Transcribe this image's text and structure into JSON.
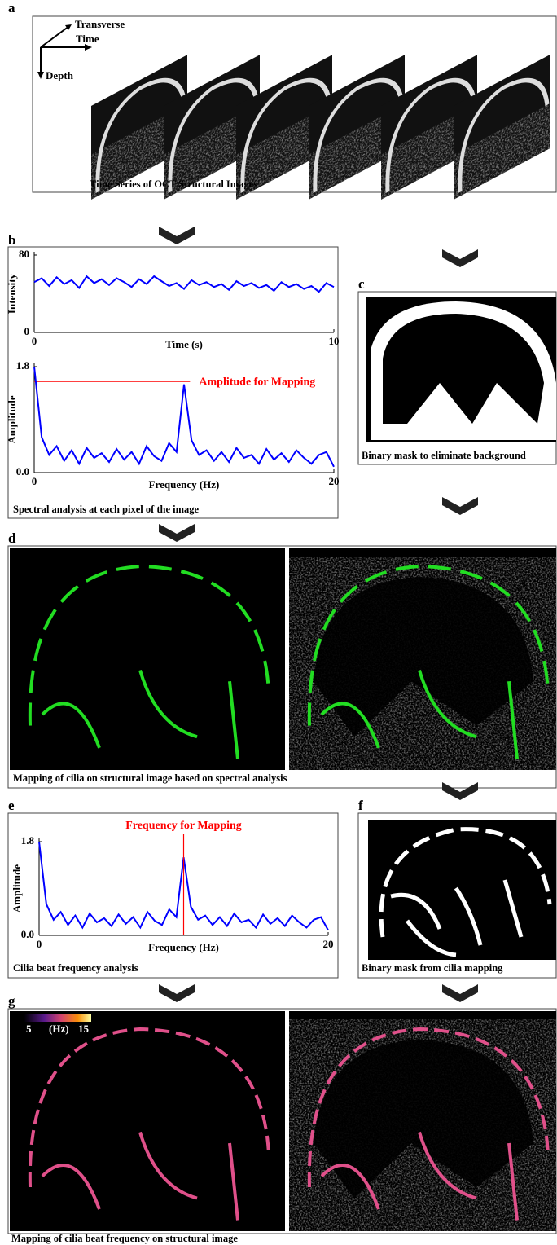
{
  "panels": {
    "a": {
      "label": "a",
      "axes": [
        "Transverse",
        "Time",
        "Depth"
      ],
      "caption": "Time Series of OCT Structural Images"
    },
    "b": {
      "label": "b",
      "caption": "Spectral analysis at each pixel of the image"
    },
    "c": {
      "label": "c",
      "caption": "Binary mask to eliminate background"
    },
    "d": {
      "label": "d",
      "caption": "Mapping of cilia on structural image based on spectral analysis"
    },
    "e": {
      "label": "e",
      "caption": "Cilia beat frequency analysis"
    },
    "f": {
      "label": "f",
      "caption": "Binary mask from cilia mapping"
    },
    "g": {
      "label": "g",
      "caption": "Mapping of cilia beat frequency on structural image",
      "colorbar": {
        "min": 5,
        "unit": "(Hz)",
        "max": 15
      }
    }
  },
  "chart_data": [
    {
      "type": "line",
      "xlabel": "Time (s)",
      "ylabel": "Intensity",
      "color": "#0000ff",
      "x": [
        0,
        0.25,
        0.5,
        0.75,
        1,
        1.25,
        1.5,
        1.75,
        2,
        2.25,
        2.5,
        2.75,
        3,
        3.25,
        3.5,
        3.75,
        4,
        4.25,
        4.5,
        4.75,
        5,
        5.25,
        5.5,
        5.75,
        6,
        6.25,
        6.5,
        6.75,
        7,
        7.25,
        7.5,
        7.75,
        8,
        8.25,
        8.5,
        8.75,
        9,
        9.25,
        9.5,
        9.75,
        10
      ],
      "values": [
        52,
        56,
        48,
        57,
        50,
        54,
        46,
        58,
        51,
        55,
        49,
        56,
        52,
        47,
        55,
        50,
        58,
        53,
        48,
        51,
        45,
        54,
        49,
        52,
        47,
        50,
        44,
        53,
        48,
        51,
        46,
        49,
        43,
        52,
        47,
        50,
        45,
        48,
        42,
        51,
        47
      ],
      "xlim": [
        0,
        10
      ],
      "ylim": [
        0,
        80
      ],
      "xticks": [
        0,
        10
      ],
      "yticks": [
        0,
        80
      ]
    },
    {
      "type": "line",
      "xlabel": "Frequency (Hz)",
      "ylabel": "Amplitude",
      "color": "#0000ff",
      "x": [
        0,
        0.5,
        1,
        1.5,
        2,
        2.5,
        3,
        3.5,
        4,
        4.5,
        5,
        5.5,
        6,
        6.5,
        7,
        7.5,
        8,
        8.5,
        9,
        9.5,
        10,
        10.5,
        11,
        11.5,
        12,
        12.5,
        13,
        13.5,
        14,
        14.5,
        15,
        15.5,
        16,
        16.5,
        17,
        17.5,
        18,
        18.5,
        19,
        19.5,
        20
      ],
      "values": [
        1.8,
        0.6,
        0.3,
        0.45,
        0.2,
        0.38,
        0.15,
        0.42,
        0.25,
        0.33,
        0.18,
        0.4,
        0.22,
        0.35,
        0.15,
        0.45,
        0.28,
        0.2,
        0.5,
        0.35,
        1.5,
        0.55,
        0.3,
        0.38,
        0.2,
        0.35,
        0.18,
        0.42,
        0.25,
        0.3,
        0.15,
        0.4,
        0.22,
        0.33,
        0.18,
        0.38,
        0.25,
        0.15,
        0.3,
        0.35,
        0.1
      ],
      "xlim": [
        0,
        20
      ],
      "ylim": [
        0,
        1.8
      ],
      "xticks": [
        0,
        20
      ],
      "yticks": [
        {
          "value": 0,
          "label": "0.0"
        },
        {
          "value": 1.8,
          "label": "1.8"
        }
      ],
      "annotation": {
        "text": "Amplitude for Mapping",
        "y": 1.55,
        "color": "#ff0000"
      }
    },
    {
      "type": "line",
      "xlabel": "Frequency (Hz)",
      "ylabel": "Amplitude",
      "color": "#0000ff",
      "x": [
        0,
        0.5,
        1,
        1.5,
        2,
        2.5,
        3,
        3.5,
        4,
        4.5,
        5,
        5.5,
        6,
        6.5,
        7,
        7.5,
        8,
        8.5,
        9,
        9.5,
        10,
        10.5,
        11,
        11.5,
        12,
        12.5,
        13,
        13.5,
        14,
        14.5,
        15,
        15.5,
        16,
        16.5,
        17,
        17.5,
        18,
        18.5,
        19,
        19.5,
        20
      ],
      "values": [
        1.8,
        0.6,
        0.3,
        0.45,
        0.2,
        0.38,
        0.15,
        0.42,
        0.25,
        0.33,
        0.18,
        0.4,
        0.22,
        0.35,
        0.15,
        0.45,
        0.28,
        0.2,
        0.5,
        0.35,
        1.5,
        0.55,
        0.3,
        0.38,
        0.2,
        0.35,
        0.18,
        0.42,
        0.25,
        0.3,
        0.15,
        0.4,
        0.22,
        0.33,
        0.18,
        0.38,
        0.25,
        0.15,
        0.3,
        0.35,
        0.1
      ],
      "xlim": [
        0,
        20
      ],
      "ylim": [
        0,
        1.8
      ],
      "xticks": [
        0,
        20
      ],
      "yticks": [
        {
          "value": 0,
          "label": "0.0"
        },
        {
          "value": 1.8,
          "label": "1.8"
        }
      ],
      "annotation": {
        "text": "Frequency for Mapping",
        "x": 10,
        "color": "#ff0000"
      }
    }
  ]
}
